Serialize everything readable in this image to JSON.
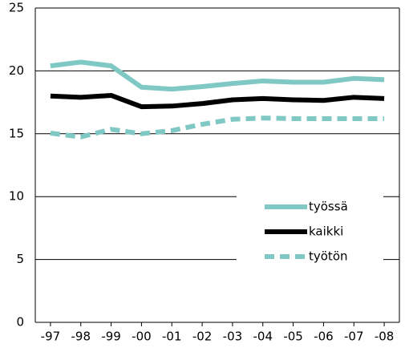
{
  "chart_data": {
    "type": "line",
    "categories": [
      "-97",
      "-98",
      "-99",
      "-00",
      "-01",
      "-02",
      "-03",
      "-04",
      "-05",
      "-06",
      "-07",
      "-08"
    ],
    "series": [
      {
        "name": "työssä",
        "color": "#7fc8c4",
        "dash": false,
        "values": [
          20.4,
          20.7,
          20.4,
          18.7,
          18.55,
          18.75,
          19.0,
          19.2,
          19.1,
          19.1,
          19.4,
          19.3
        ]
      },
      {
        "name": "kaikki",
        "color": "#000000",
        "dash": false,
        "values": [
          18.0,
          17.9,
          18.05,
          17.15,
          17.2,
          17.4,
          17.7,
          17.8,
          17.7,
          17.65,
          17.9,
          17.8
        ]
      },
      {
        "name": "työtön",
        "color": "#7fc8c4",
        "dash": true,
        "values": [
          15.05,
          14.75,
          15.35,
          15.0,
          15.25,
          15.75,
          16.15,
          16.25,
          16.2,
          16.2,
          16.2,
          16.2
        ]
      }
    ],
    "ylim": [
      0,
      25
    ],
    "yticks": [
      0,
      5,
      10,
      15,
      20,
      25
    ],
    "grid": true,
    "legend": "right"
  }
}
